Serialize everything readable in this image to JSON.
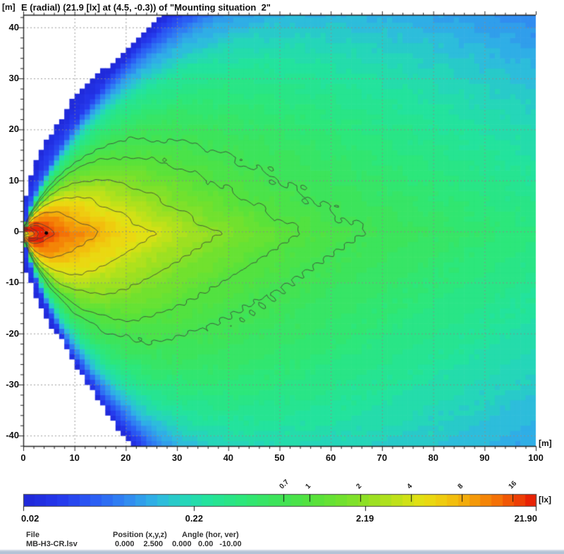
{
  "title": "E (radial) (21.9 [lx] at (4.5, -0.3)) of \"Mounting situation  2\"",
  "units": {
    "axis_left": "[m]",
    "axis_right": "[m]",
    "colorbar": "[lx]"
  },
  "footer": {
    "file_label": "File",
    "file_value": "MB-H3-CR.lsv",
    "position_label": "Position (x,y,z)",
    "position_values": [
      "0.000",
      "2.500",
      "0.000"
    ],
    "angle_label": "Angle (hor, ver)",
    "angle_values": [
      "0.00",
      "-10.00"
    ]
  },
  "chart_data": {
    "type": "heatmap",
    "subtype": "filled-contour-illuminance-map",
    "title": "E (radial) (21.9 [lx] at (4.5, -0.3)) of \"Mounting situation  2\"",
    "xlabel": "[m]",
    "ylabel": "[m]",
    "value_unit": "[lx]",
    "xlim": [
      0,
      100
    ],
    "ylim": [
      -42.5,
      42.5
    ],
    "grid": {
      "on": true,
      "style": "dashed",
      "spacing_m": 10,
      "minor_tick_m": 2
    },
    "axes": {
      "x_ticks": [
        {
          "v": 0,
          "label": "0"
        },
        {
          "v": 10,
          "label": "10"
        },
        {
          "v": 20,
          "label": "20"
        },
        {
          "v": 30,
          "label": "30"
        },
        {
          "v": 40,
          "label": "40"
        },
        {
          "v": 50,
          "label": "50"
        },
        {
          "v": 60,
          "label": "60"
        },
        {
          "v": 70,
          "label": "70"
        },
        {
          "v": 80,
          "label": "80"
        },
        {
          "v": 90,
          "label": "90"
        },
        {
          "v": 100,
          "label": "100"
        }
      ],
      "y_ticks": [
        {
          "v": 40,
          "label": "40"
        },
        {
          "v": 30,
          "label": "30"
        },
        {
          "v": 20,
          "label": "20"
        },
        {
          "v": 10,
          "label": "10"
        },
        {
          "v": 0,
          "label": "0"
        },
        {
          "v": -10,
          "label": "-10"
        },
        {
          "v": -20,
          "label": "-20"
        },
        {
          "v": -30,
          "label": "-30"
        },
        {
          "v": -40,
          "label": "-40"
        }
      ]
    },
    "peak": {
      "value_lx": 21.9,
      "x": 4.5,
      "y": -0.3,
      "marker": "black-dot"
    },
    "colorbar": {
      "min_lx": 0.02,
      "max_lx": 21.9,
      "log_scale": true,
      "scale_labels": [
        {
          "t": 0.0,
          "label": "0.02",
          "align": "left"
        },
        {
          "t": 0.3333,
          "label": "0.22",
          "align": "center"
        },
        {
          "t": 0.6667,
          "label": "2.19",
          "align": "center"
        },
        {
          "t": 1.0,
          "label": "21.90",
          "align": "right"
        }
      ],
      "level_ticks": [
        {
          "v": 0.7,
          "label": "0.7"
        },
        {
          "v": 1,
          "label": "1"
        },
        {
          "v": 2,
          "label": "2"
        },
        {
          "v": 4,
          "label": "4"
        },
        {
          "v": 8,
          "label": "8"
        },
        {
          "v": 16,
          "label": "16"
        }
      ]
    },
    "contour_levels_lx": [
      0.7,
      1,
      2,
      4,
      8,
      16
    ],
    "drawn_levels_lx": [
      0.7,
      1,
      2,
      4,
      8,
      16,
      20
    ],
    "axis_profile_lx": [
      [
        0,
        0.4
      ],
      [
        0.3,
        1.2
      ],
      [
        0.8,
        4
      ],
      [
        1.5,
        10
      ],
      [
        2.5,
        16.5
      ],
      [
        3.5,
        20.5
      ],
      [
        4.5,
        21.9
      ],
      [
        5.5,
        19.5
      ],
      [
        6.5,
        16
      ],
      [
        9,
        12
      ],
      [
        14.8,
        8
      ],
      [
        20,
        5.6
      ],
      [
        25.4,
        4
      ],
      [
        31,
        2.9
      ],
      [
        37.8,
        2
      ],
      [
        45,
        1.45
      ],
      [
        54,
        1
      ],
      [
        60,
        0.85
      ],
      [
        67,
        0.7
      ],
      [
        80,
        0.55
      ],
      [
        100,
        0.37
      ],
      [
        140,
        0.17
      ],
      [
        200,
        0.054
      ],
      [
        300,
        0.008
      ],
      [
        600,
        0.0001
      ]
    ],
    "model": {
      "peak_y_offset": -0.3,
      "egg_y_stretch": 3.4,
      "egg_exponent": 0.7,
      "egg_asym_upper": 1.07,
      "egg_asym_lower": 0.94,
      "halo_a": 0.55,
      "halo_b": 0.083,
      "halo_cap": 0.05,
      "halo_asym_upper": 0.97,
      "halo_asym_lower": 1.12,
      "noise_amp1": 0.045,
      "noise_amp2": 0.035
    },
    "colormap_stops": [
      [
        0.0,
        "#1f28d8"
      ],
      [
        0.07,
        "#2438ec"
      ],
      [
        0.14,
        "#2b5ef4"
      ],
      [
        0.2,
        "#3188f2"
      ],
      [
        0.26,
        "#2fb6e4"
      ],
      [
        0.31,
        "#25d4bc"
      ],
      [
        0.36,
        "#23e39c"
      ],
      [
        0.43,
        "#2de778"
      ],
      [
        0.5,
        "#3fe356"
      ],
      [
        0.57,
        "#57e23a"
      ],
      [
        0.63,
        "#77e12c"
      ],
      [
        0.68,
        "#99e022"
      ],
      [
        0.73,
        "#c0e119"
      ],
      [
        0.78,
        "#e7e012"
      ],
      [
        0.83,
        "#f2c40e"
      ],
      [
        0.875,
        "#f49e09"
      ],
      [
        0.92,
        "#f47506"
      ],
      [
        0.96,
        "#ef4705"
      ],
      [
        1.0,
        "#e61404"
      ]
    ],
    "below_min_color": "#ffffff",
    "contour_line_color": "#3a3a3a",
    "gridline_color": "#8a8a8a",
    "axis_color": "#222222",
    "footer_strip_colors": [
      "#cfd8e4",
      "#b4c3d6"
    ]
  }
}
